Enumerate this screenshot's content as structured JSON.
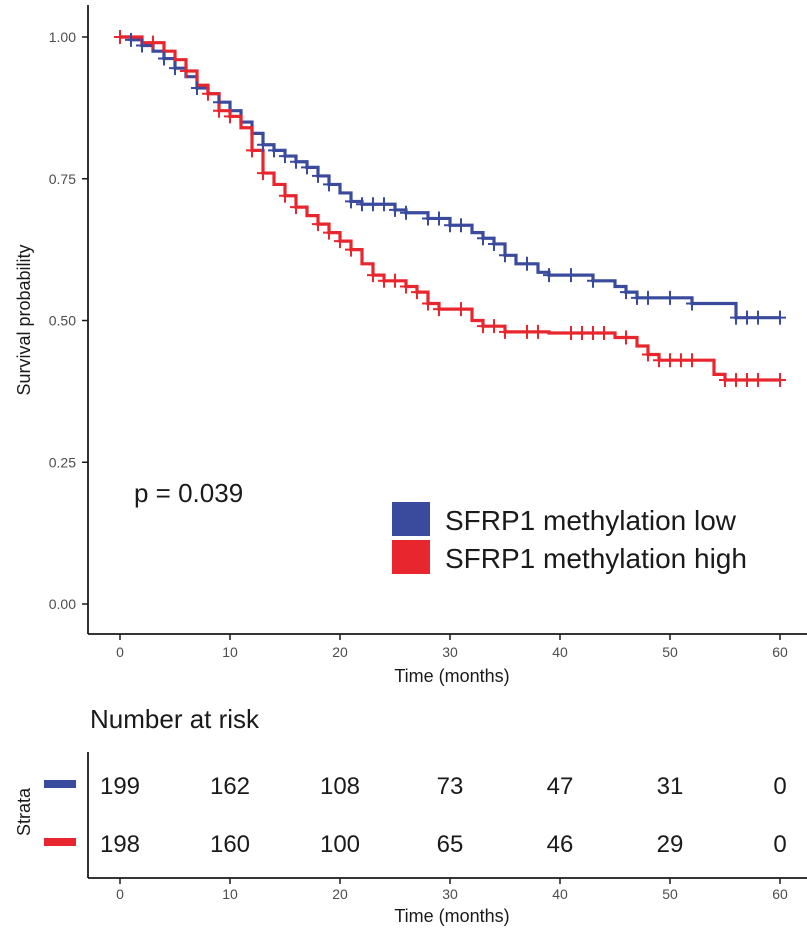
{
  "chart_data": [
    {
      "type": "line",
      "subtype": "kaplan-meier",
      "title": "",
      "xlabel": "Time (months)",
      "ylabel": "Survival probability",
      "xlim": [
        0,
        60
      ],
      "ylim": [
        0,
        1
      ],
      "x_ticks": [
        "0",
        "10",
        "20",
        "30",
        "40",
        "50",
        "60"
      ],
      "y_ticks": [
        "0.00",
        "0.25",
        "0.50",
        "0.75",
        "1.00"
      ],
      "grid": false,
      "annotation": "p = 0.039",
      "legend_position": "bottom-right",
      "series": [
        {
          "name": "SFRP1 methylation low",
          "color": "#3a4a9c",
          "steps": [
            [
              0,
              1.0
            ],
            [
              1,
              0.995
            ],
            [
              2,
              0.985
            ],
            [
              3,
              0.975
            ],
            [
              4,
              0.962
            ],
            [
              5,
              0.945
            ],
            [
              6,
              0.93
            ],
            [
              7,
              0.91
            ],
            [
              8,
              0.9
            ],
            [
              9,
              0.885
            ],
            [
              10,
              0.87
            ],
            [
              11,
              0.85
            ],
            [
              12,
              0.83
            ],
            [
              13,
              0.81
            ],
            [
              14,
              0.8
            ],
            [
              15,
              0.79
            ],
            [
              16,
              0.78
            ],
            [
              17,
              0.77
            ],
            [
              18,
              0.755
            ],
            [
              19,
              0.74
            ],
            [
              20,
              0.725
            ],
            [
              21,
              0.71
            ],
            [
              22,
              0.705
            ],
            [
              25,
              0.695
            ],
            [
              26,
              0.69
            ],
            [
              28,
              0.68
            ],
            [
              30,
              0.668
            ],
            [
              32,
              0.655
            ],
            [
              33,
              0.645
            ],
            [
              34,
              0.635
            ],
            [
              35,
              0.615
            ],
            [
              36,
              0.6
            ],
            [
              38,
              0.585
            ],
            [
              39,
              0.58
            ],
            [
              43,
              0.57
            ],
            [
              45,
              0.56
            ],
            [
              46,
              0.55
            ],
            [
              47,
              0.54
            ],
            [
              52,
              0.53
            ],
            [
              56,
              0.505
            ],
            [
              60,
              0.505
            ]
          ],
          "censored_x": [
            1,
            2,
            4,
            5,
            7,
            9,
            13,
            14,
            15,
            16,
            17,
            18,
            19,
            21,
            22,
            23,
            24,
            25,
            26,
            28,
            29,
            30,
            31,
            33,
            34,
            35,
            37,
            39,
            41,
            43,
            46,
            47,
            48,
            50,
            52,
            56,
            57,
            58,
            60
          ]
        },
        {
          "name": "SFRP1 methylation high",
          "color": "#e8262d",
          "steps": [
            [
              0,
              1.0
            ],
            [
              2,
              0.99
            ],
            [
              4,
              0.975
            ],
            [
              5,
              0.96
            ],
            [
              6,
              0.94
            ],
            [
              7,
              0.915
            ],
            [
              8,
              0.9
            ],
            [
              9,
              0.87
            ],
            [
              10,
              0.86
            ],
            [
              11,
              0.84
            ],
            [
              12,
              0.8
            ],
            [
              13,
              0.76
            ],
            [
              14,
              0.74
            ],
            [
              15,
              0.72
            ],
            [
              16,
              0.7
            ],
            [
              17,
              0.685
            ],
            [
              18,
              0.67
            ],
            [
              19,
              0.655
            ],
            [
              20,
              0.64
            ],
            [
              21,
              0.625
            ],
            [
              22,
              0.6
            ],
            [
              23,
              0.58
            ],
            [
              24,
              0.57
            ],
            [
              26,
              0.56
            ],
            [
              27,
              0.55
            ],
            [
              28,
              0.53
            ],
            [
              29,
              0.52
            ],
            [
              32,
              0.5
            ],
            [
              33,
              0.49
            ],
            [
              35,
              0.48
            ],
            [
              39,
              0.478
            ],
            [
              45,
              0.47
            ],
            [
              47,
              0.455
            ],
            [
              48,
              0.44
            ],
            [
              49,
              0.43
            ],
            [
              54,
              0.405
            ],
            [
              55,
              0.395
            ],
            [
              60,
              0.395
            ]
          ],
          "censored_x": [
            0,
            3,
            6,
            8,
            9,
            10,
            12,
            13,
            15,
            16,
            18,
            19,
            20,
            21,
            23,
            24,
            25,
            26,
            27,
            28,
            29,
            31,
            33,
            34,
            35,
            37,
            38,
            41,
            42,
            43,
            44,
            46,
            48,
            49,
            50,
            51,
            52,
            55,
            56,
            57,
            58,
            60
          ]
        }
      ]
    },
    {
      "type": "table",
      "title": "Number at risk",
      "ylabel": "Strata",
      "xlabel": "Time (months)",
      "x_ticks": [
        "0",
        "10",
        "20",
        "30",
        "40",
        "50",
        "60"
      ],
      "rows": [
        {
          "series": "SFRP1 methylation low",
          "color": "#3a4a9c",
          "values": [
            "199",
            "162",
            "108",
            "73",
            "47",
            "31",
            "0"
          ]
        },
        {
          "series": "SFRP1 methylation high",
          "color": "#e8262d",
          "values": [
            "198",
            "160",
            "100",
            "65",
            "46",
            "29",
            "0"
          ]
        }
      ]
    }
  ]
}
